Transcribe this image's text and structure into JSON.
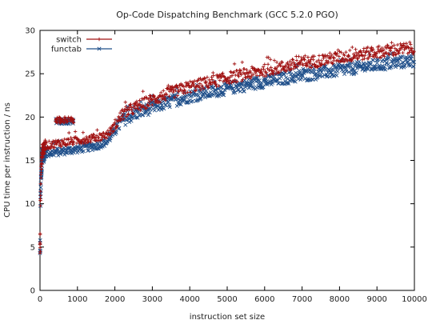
{
  "chart_data": {
    "type": "scatter",
    "title": "Op-Code Dispatching Benchmark (GCC 5.2.0 PGO)",
    "xlabel": "instruction set size",
    "ylabel": "CPU time per instruction / ns",
    "xlim": [
      0,
      10000
    ],
    "ylim": [
      0,
      30
    ],
    "xticks": [
      0,
      1000,
      2000,
      3000,
      4000,
      5000,
      6000,
      7000,
      8000,
      9000,
      10000
    ],
    "yticks": [
      0,
      5,
      10,
      15,
      20,
      25,
      30
    ],
    "grid": false,
    "legend_position": "top-left",
    "series": [
      {
        "name": "switch",
        "color": "#a01010",
        "marker": "plus",
        "trend": [
          [
            0,
            4.3
          ],
          [
            15,
            11.5
          ],
          [
            30,
            14.0
          ],
          [
            60,
            16.0
          ],
          [
            150,
            16.7
          ],
          [
            500,
            17.0
          ],
          [
            1000,
            17.3
          ],
          [
            1500,
            17.6
          ],
          [
            1800,
            18.0
          ],
          [
            2000,
            19.0
          ],
          [
            2200,
            20.3
          ],
          [
            2500,
            21.0
          ],
          [
            3000,
            22.0
          ],
          [
            3500,
            22.8
          ],
          [
            4000,
            23.5
          ],
          [
            5000,
            24.5
          ],
          [
            6000,
            25.4
          ],
          [
            7000,
            26.2
          ],
          [
            8000,
            26.9
          ],
          [
            9000,
            27.5
          ],
          [
            10000,
            28.0
          ]
        ],
        "outlier_cluster": {
          "x_range": [
            400,
            900
          ],
          "y_range": [
            19.3,
            20.0
          ]
        }
      },
      {
        "name": "functab",
        "color": "#1f4f8a",
        "marker": "cross",
        "trend": [
          [
            0,
            4.3
          ],
          [
            15,
            11.0
          ],
          [
            30,
            13.0
          ],
          [
            60,
            15.5
          ],
          [
            150,
            15.8
          ],
          [
            500,
            16.0
          ],
          [
            1000,
            16.3
          ],
          [
            1500,
            16.7
          ],
          [
            1800,
            17.2
          ],
          [
            2000,
            18.5
          ],
          [
            2200,
            19.6
          ],
          [
            2500,
            20.3
          ],
          [
            3000,
            21.1
          ],
          [
            3500,
            21.8
          ],
          [
            4000,
            22.4
          ],
          [
            5000,
            23.3
          ],
          [
            6000,
            24.1
          ],
          [
            7000,
            24.8
          ],
          [
            8000,
            25.4
          ],
          [
            9000,
            26.0
          ],
          [
            10000,
            26.5
          ]
        ],
        "outlier_cluster": {
          "x_range": [
            400,
            900
          ],
          "y_range": [
            19.2,
            19.8
          ]
        }
      }
    ]
  }
}
